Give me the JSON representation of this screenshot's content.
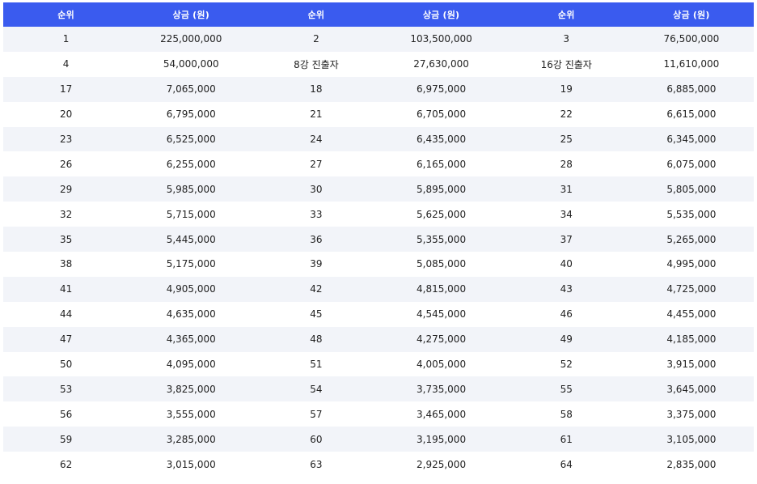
{
  "table": {
    "headers": [
      "순위",
      "상금 (원)",
      "순위",
      "상금 (원)",
      "순위",
      "상금 (원)"
    ],
    "rows": [
      [
        "1",
        "225,000,000",
        "2",
        "103,500,000",
        "3",
        "76,500,000"
      ],
      [
        "4",
        "54,000,000",
        "8강 진출자",
        "27,630,000",
        "16강 진출자",
        "11,610,000"
      ],
      [
        "17",
        "7,065,000",
        "18",
        "6,975,000",
        "19",
        "6,885,000"
      ],
      [
        "20",
        "6,795,000",
        "21",
        "6,705,000",
        "22",
        "6,615,000"
      ],
      [
        "23",
        "6,525,000",
        "24",
        "6,435,000",
        "25",
        "6,345,000"
      ],
      [
        "26",
        "6,255,000",
        "27",
        "6,165,000",
        "28",
        "6,075,000"
      ],
      [
        "29",
        "5,985,000",
        "30",
        "5,895,000",
        "31",
        "5,805,000"
      ],
      [
        "32",
        "5,715,000",
        "33",
        "5,625,000",
        "34",
        "5,535,000"
      ],
      [
        "35",
        "5,445,000",
        "36",
        "5,355,000",
        "37",
        "5,265,000"
      ],
      [
        "38",
        "5,175,000",
        "39",
        "5,085,000",
        "40",
        "4,995,000"
      ],
      [
        "41",
        "4,905,000",
        "42",
        "4,815,000",
        "43",
        "4,725,000"
      ],
      [
        "44",
        "4,635,000",
        "45",
        "4,545,000",
        "46",
        "4,455,000"
      ],
      [
        "47",
        "4,365,000",
        "48",
        "4,275,000",
        "49",
        "4,185,000"
      ],
      [
        "50",
        "4,095,000",
        "51",
        "4,005,000",
        "52",
        "3,915,000"
      ],
      [
        "53",
        "3,825,000",
        "54",
        "3,735,000",
        "55",
        "3,645,000"
      ],
      [
        "56",
        "3,555,000",
        "57",
        "3,465,000",
        "58",
        "3,375,000"
      ],
      [
        "59",
        "3,285,000",
        "60",
        "3,195,000",
        "61",
        "3,105,000"
      ],
      [
        "62",
        "3,015,000",
        "63",
        "2,925,000",
        "64",
        "2,835,000"
      ]
    ]
  },
  "colors": {
    "header_bg": "#3a5bef",
    "header_text": "#ffffff",
    "row_alt_bg": "#f2f4f9",
    "row_bg": "#ffffff",
    "text": "#222222"
  }
}
